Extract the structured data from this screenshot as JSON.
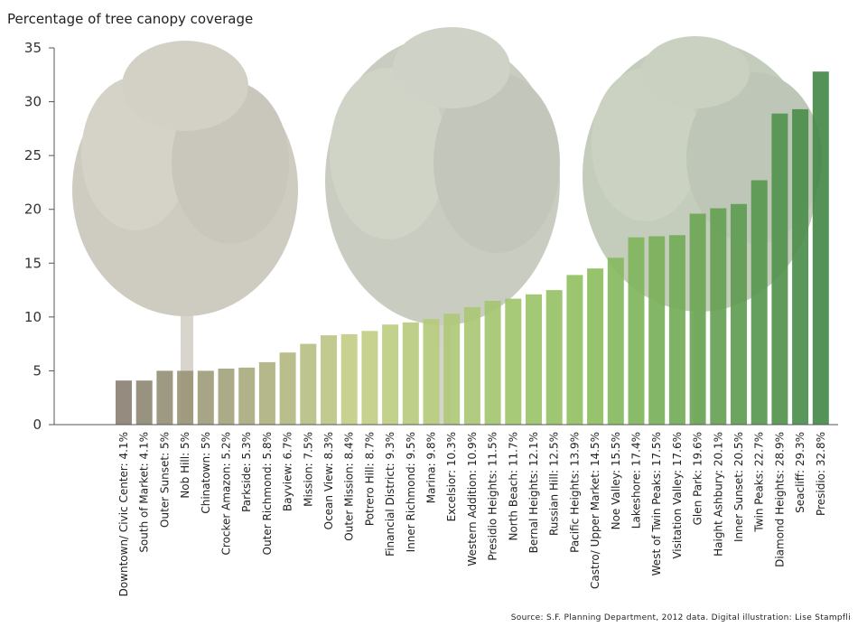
{
  "chart_data": {
    "type": "bar",
    "ylabel": "Percentage of tree canopy coverage",
    "ylim": [
      0,
      35
    ],
    "yticks": [
      0,
      5,
      10,
      15,
      20,
      25,
      30,
      35
    ],
    "grid": false,
    "bar_colors": [
      "#8c8274",
      "#c5cf88",
      "#8fc061",
      "#45894a"
    ],
    "categories": [
      "Downtown/ Civic Center",
      "South of Market",
      "Outer Sunset",
      "Nob Hill",
      "Chinatown",
      "Crocker Amazon",
      "Parkside",
      "Outer Richmond",
      "Bayview",
      "Mission",
      "Ocean View",
      "Outer Mission",
      "Potrero Hill",
      "Financial District",
      "Inner Richmond",
      "Marina",
      "Excelsior",
      "Western Addition",
      "Presidio Heights",
      "North Beach",
      "Bernal Heights",
      "Russian Hill",
      "Pacific Heights",
      "Castro/ Upper Market",
      "Noe Valley",
      "Lakeshore",
      "West of Twin Peaks",
      "Visitation Valley",
      "Glen Park",
      "Haight Ashbury",
      "Inner Sunset",
      "Twin Peaks",
      "Diamond Heights",
      "Seacliff",
      "Presidio"
    ],
    "values": [
      4.1,
      4.1,
      5,
      5,
      5,
      5.2,
      5.3,
      5.8,
      6.7,
      7.5,
      8.3,
      8.4,
      8.7,
      9.3,
      9.5,
      9.8,
      10.3,
      10.9,
      11.5,
      11.7,
      12.1,
      12.5,
      13.9,
      14.5,
      15.5,
      17.4,
      17.5,
      17.6,
      19.6,
      20.1,
      20.5,
      22.7,
      28.9,
      29.3,
      32.8
    ],
    "tick_labels": [
      "Downtown/ Civic Center: 4.1%",
      "South of Market: 4.1%",
      "Outer Sunset: 5%",
      "Nob Hill: 5%",
      "Chinatown: 5%",
      "Crocker Amazon: 5.2%",
      "Parkside: 5.3%",
      "Outer Richmond: 5.8%",
      "Bayview: 6.7%",
      "Mission: 7.5%",
      "Ocean View: 8.3%",
      "Outer Mission: 8.4%",
      "Potrero Hill: 8.7%",
      "Financial District: 9.3%",
      "Inner Richmond: 9.5%",
      "Marina: 9.8%",
      "Excelsior: 10.3%",
      "Western Addition: 10.9%",
      "Presidio Heights: 11.5%",
      "North Beach: 11.7%",
      "Bernal Heights: 12.1%",
      "Russian Hill: 12.5%",
      "Pacific Heights: 13.9%",
      "Castro/ Upper Market: 14.5%",
      "Noe Valley: 15.5%",
      "Lakeshore: 17.4%",
      "West of Twin Peaks: 17.5%",
      "Visitation Valley: 17.6%",
      "Glen Park: 19.6%",
      "Haight Ashbury: 20.1%",
      "Inner Sunset: 20.5%",
      "Twin Peaks: 22.7%",
      "Diamond Heights: 28.9%",
      "Seacliff: 29.3%",
      "Presidio: 32.8%"
    ]
  },
  "source_note": "Source: S.F. Planning Department, 2012 data. Digital illustration: Lise Stampfli"
}
